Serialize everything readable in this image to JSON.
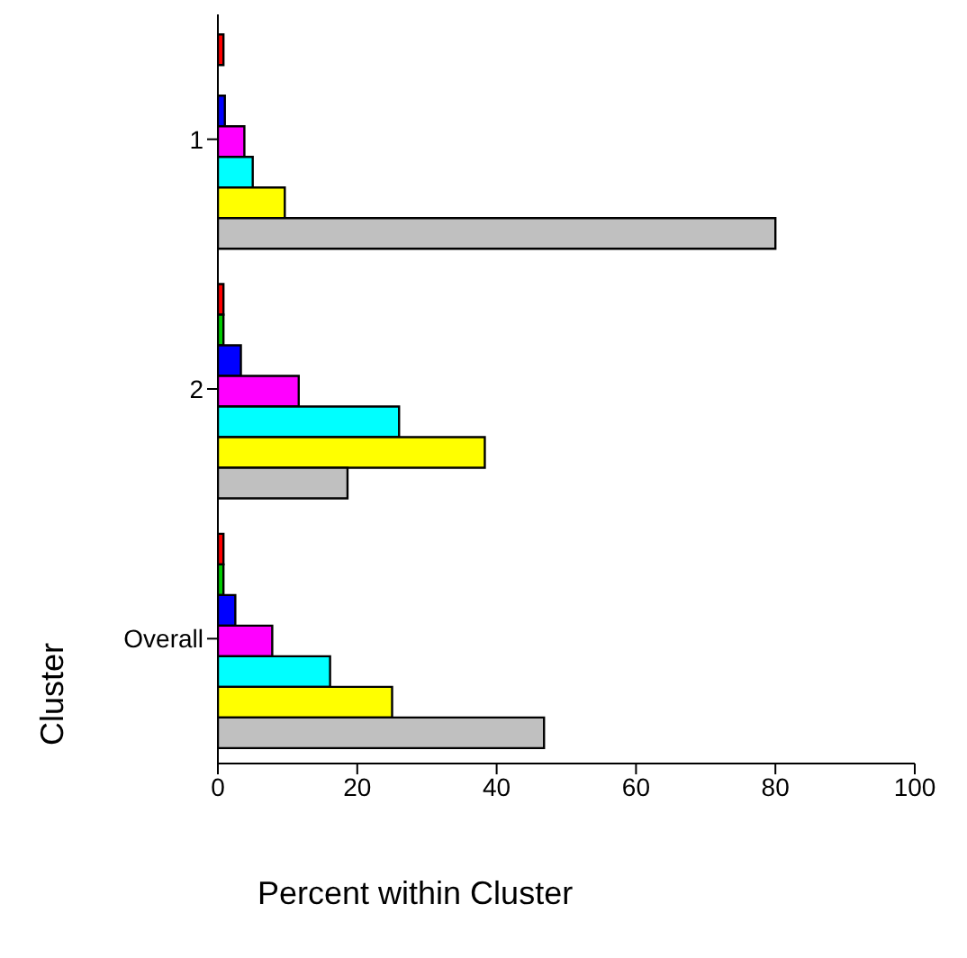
{
  "chart_data": {
    "type": "bar",
    "orientation": "horizontal",
    "categories": [
      "1",
      "2",
      "Overall"
    ],
    "series": [
      {
        "color": "#ff0000",
        "values": [
          0.8,
          0.8,
          0.8
        ]
      },
      {
        "color": "#00cc00",
        "values": [
          0,
          0.8,
          0.8
        ]
      },
      {
        "color": "#0000ff",
        "values": [
          1,
          3.3,
          2.5
        ]
      },
      {
        "color": "#ff00ff",
        "values": [
          3.8,
          11.6,
          7.8
        ]
      },
      {
        "color": "#00ffff",
        "values": [
          5,
          26,
          16.1
        ]
      },
      {
        "color": "#ffff00",
        "values": [
          9.6,
          38.3,
          25
        ]
      },
      {
        "color": "#c0c0c0",
        "values": [
          80,
          18.6,
          46.8
        ]
      }
    ],
    "xlim": [
      0,
      100
    ],
    "xticks": [
      0,
      20,
      40,
      60,
      80,
      100
    ],
    "xlabel": "Percent within Cluster",
    "ylabel": "Cluster",
    "grid": false,
    "legend": false
  }
}
